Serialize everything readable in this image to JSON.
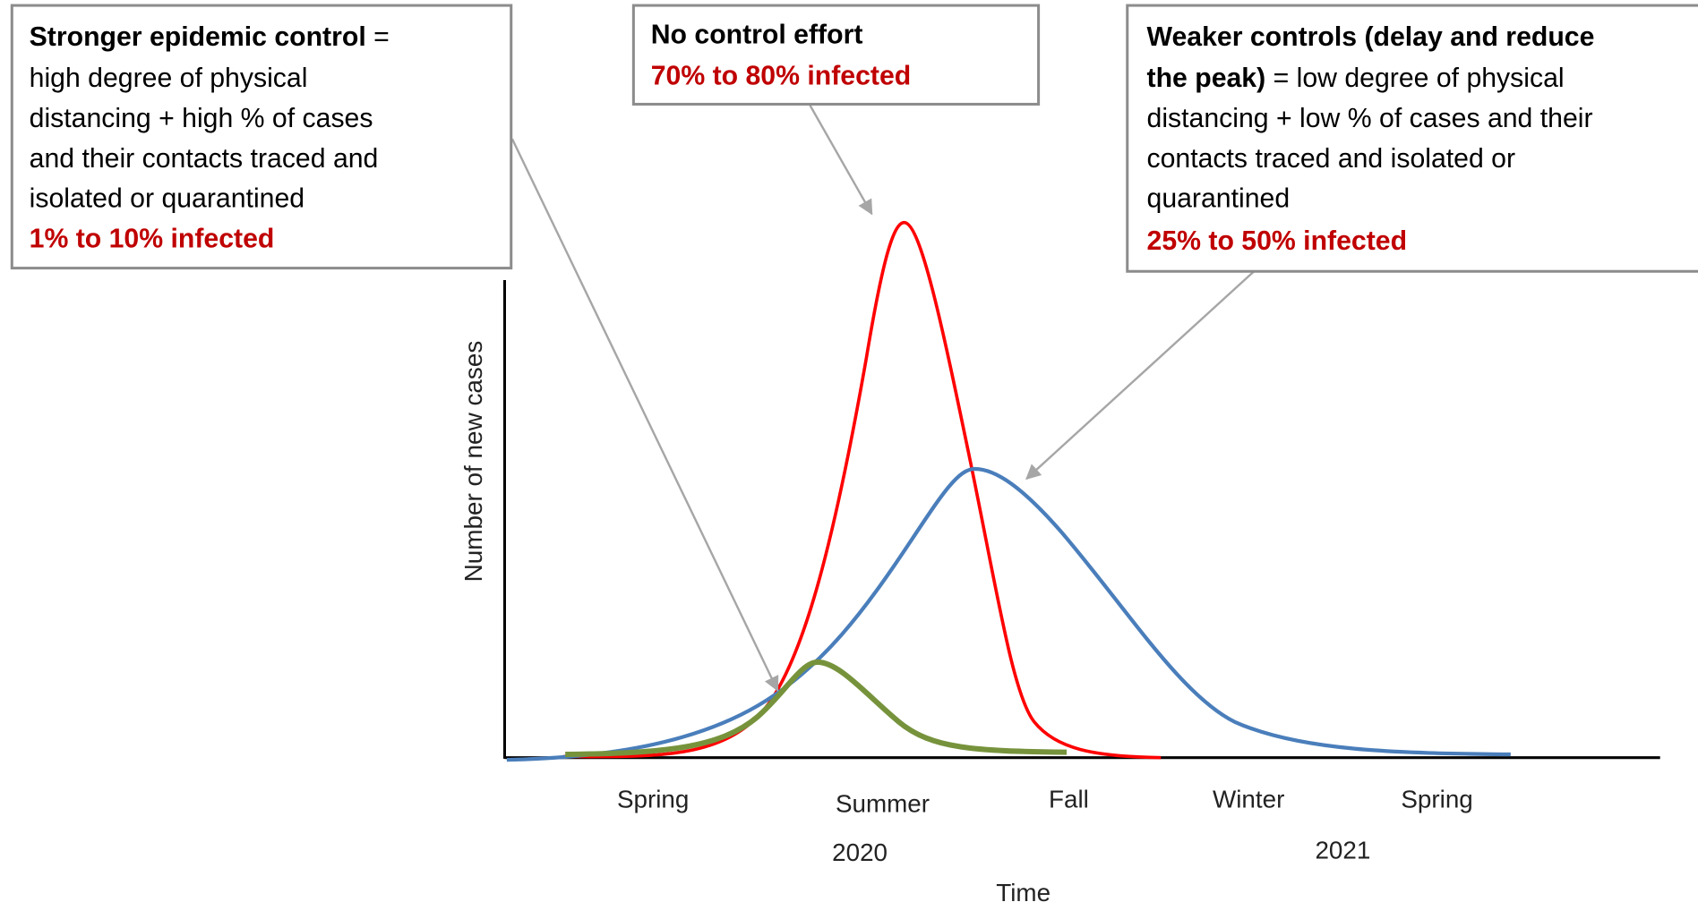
{
  "strong_box": {
    "title": "Stronger epidemic control",
    "title_suffix": "=",
    "lines": [
      "high degree of physical",
      "distancing + high % of cases",
      "and their contacts traced and",
      "isolated or quarantined"
    ],
    "result": "1% to 10% infected"
  },
  "none_box": {
    "title": "No control effort",
    "result": "70% to 80% infected"
  },
  "weak_box": {
    "title_lines": [
      "Weaker controls (delay and reduce",
      "the peak)"
    ],
    "first_line_rest": "= low degree of physical",
    "lines": [
      "distancing + low % of cases and their",
      "contacts traced and isolated or",
      "quarantined"
    ],
    "result": "25% to 50% infected"
  },
  "axes": {
    "y_label": "Number of new cases",
    "x_label": "Time",
    "seasons": [
      "Spring",
      "Summer",
      "Fall",
      "Winter",
      "Spring"
    ],
    "years": [
      "2020",
      "2021"
    ]
  }
}
